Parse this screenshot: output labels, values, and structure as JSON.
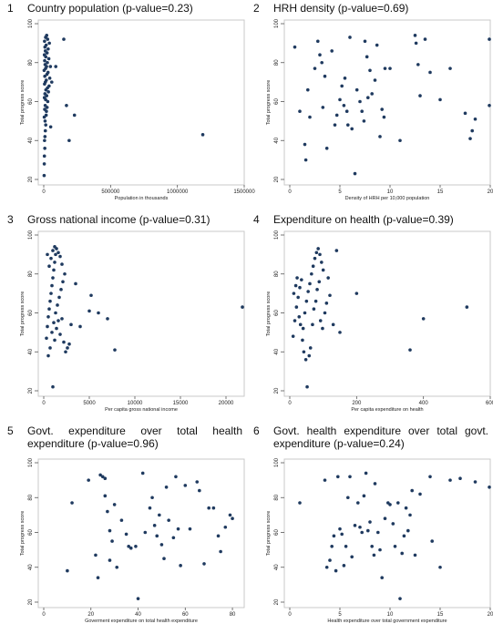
{
  "chart_data": [
    {
      "type": "scatter",
      "number": "1",
      "title": "Country population (p-value=0.23)",
      "xlabel": "Population in thousands",
      "ylabel": "Total progress score",
      "xlim": [
        0,
        1500000
      ],
      "ylim": [
        20,
        100
      ],
      "xticks": [
        0,
        500000,
        1000000,
        1500000
      ],
      "xticklabels": [
        "0",
        "500000",
        "1000000",
        "1500000"
      ],
      "yticks": [
        20,
        40,
        60,
        80,
        100
      ],
      "yticklabels": [
        "20",
        "40",
        "60",
        "80",
        "100"
      ],
      "points": [
        [
          3000,
          22
        ],
        [
          4000,
          28
        ],
        [
          5000,
          32
        ],
        [
          8000,
          36
        ],
        [
          6000,
          40
        ],
        [
          9000,
          42
        ],
        [
          12000,
          45
        ],
        [
          15000,
          48
        ],
        [
          10000,
          50
        ],
        [
          4000,
          52
        ],
        [
          18000,
          53
        ],
        [
          20000,
          55
        ],
        [
          7000,
          56
        ],
        [
          25000,
          57
        ],
        [
          11000,
          58
        ],
        [
          30000,
          60
        ],
        [
          14000,
          61
        ],
        [
          5000,
          62
        ],
        [
          22000,
          63
        ],
        [
          9000,
          64
        ],
        [
          35000,
          65
        ],
        [
          16000,
          66
        ],
        [
          28000,
          67
        ],
        [
          40000,
          68
        ],
        [
          6000,
          69
        ],
        [
          12000,
          70
        ],
        [
          19000,
          71
        ],
        [
          45000,
          72
        ],
        [
          8000,
          73
        ],
        [
          24000,
          74
        ],
        [
          32000,
          75
        ],
        [
          3000,
          76
        ],
        [
          14000,
          77
        ],
        [
          50000,
          78
        ],
        [
          21000,
          78
        ],
        [
          10000,
          79
        ],
        [
          27000,
          80
        ],
        [
          7000,
          81
        ],
        [
          38000,
          82
        ],
        [
          15000,
          83
        ],
        [
          5000,
          84
        ],
        [
          25000,
          85
        ],
        [
          12000,
          86
        ],
        [
          33000,
          87
        ],
        [
          9000,
          88
        ],
        [
          18000,
          89
        ],
        [
          42000,
          90
        ],
        [
          6000,
          91
        ],
        [
          29000,
          92
        ],
        [
          14000,
          93
        ],
        [
          22000,
          94
        ],
        [
          52000,
          47
        ],
        [
          60000,
          70
        ],
        [
          90000,
          78
        ],
        [
          150000,
          92
        ],
        [
          170000,
          58
        ],
        [
          190000,
          40
        ],
        [
          230000,
          53
        ],
        [
          1190000,
          43
        ]
      ]
    },
    {
      "type": "scatter",
      "number": "2",
      "title": "HRH density (p-value=0.69)",
      "xlabel": "Density of HRH per 10,000 population",
      "ylabel": "Total progress score",
      "xlim": [
        0,
        20
      ],
      "ylim": [
        20,
        100
      ],
      "xticks": [
        0,
        5,
        10,
        15,
        20
      ],
      "xticklabels": [
        "0",
        "5",
        "10",
        "15",
        "20"
      ],
      "yticks": [
        20,
        40,
        60,
        80,
        100
      ],
      "yticklabels": [
        "20",
        "40",
        "60",
        "80",
        "100"
      ],
      "points": [
        [
          0.5,
          88
        ],
        [
          1.0,
          55
        ],
        [
          1.5,
          38
        ],
        [
          1.6,
          30
        ],
        [
          1.8,
          66
        ],
        [
          2.0,
          52
        ],
        [
          2.5,
          77
        ],
        [
          2.8,
          91
        ],
        [
          3.0,
          84
        ],
        [
          3.2,
          80
        ],
        [
          3.5,
          73
        ],
        [
          3.7,
          36
        ],
        [
          3.3,
          57
        ],
        [
          4.5,
          48
        ],
        [
          4.7,
          53
        ],
        [
          4.2,
          86
        ],
        [
          5.0,
          61
        ],
        [
          5.2,
          68
        ],
        [
          5.4,
          58
        ],
        [
          5.5,
          72
        ],
        [
          5.7,
          55
        ],
        [
          5.8,
          48
        ],
        [
          6.0,
          93
        ],
        [
          6.2,
          46
        ],
        [
          6.5,
          23
        ],
        [
          6.7,
          66
        ],
        [
          7.0,
          60
        ],
        [
          7.2,
          55
        ],
        [
          7.4,
          50
        ],
        [
          7.5,
          91
        ],
        [
          7.7,
          83
        ],
        [
          7.8,
          62
        ],
        [
          8.0,
          76
        ],
        [
          8.2,
          64
        ],
        [
          8.5,
          71
        ],
        [
          8.7,
          89
        ],
        [
          9.0,
          42
        ],
        [
          9.2,
          56
        ],
        [
          9.4,
          52
        ],
        [
          9.5,
          77
        ],
        [
          10.0,
          77
        ],
        [
          11.0,
          40
        ],
        [
          12.5,
          94
        ],
        [
          12.6,
          90
        ],
        [
          12.8,
          79
        ],
        [
          13.0,
          63
        ],
        [
          13.5,
          92
        ],
        [
          14.0,
          75
        ],
        [
          15.0,
          61
        ],
        [
          16.0,
          77
        ],
        [
          17.5,
          54
        ],
        [
          18.0,
          41
        ],
        [
          18.2,
          45
        ],
        [
          18.5,
          51
        ],
        [
          20.0,
          92
        ],
        [
          20.0,
          58
        ]
      ]
    },
    {
      "type": "scatter",
      "number": "3",
      "title": "Gross national income (p-value=0.31)",
      "xlabel": "Per capita gross national income",
      "ylabel": "Total progress score",
      "xlim": [
        0,
        22000
      ],
      "ylim": [
        20,
        100
      ],
      "xticks": [
        0,
        5000,
        10000,
        15000,
        20000
      ],
      "xticklabels": [
        "0",
        "5000",
        "10000",
        "15000",
        "20000"
      ],
      "yticks": [
        20,
        40,
        60,
        80,
        100
      ],
      "yticklabels": [
        "20",
        "40",
        "60",
        "80",
        "100"
      ],
      "points": [
        [
          300,
          47
        ],
        [
          400,
          53
        ],
        [
          500,
          58
        ],
        [
          600,
          62
        ],
        [
          700,
          66
        ],
        [
          800,
          70
        ],
        [
          900,
          74
        ],
        [
          1000,
          78
        ],
        [
          1100,
          82
        ],
        [
          1200,
          86
        ],
        [
          1300,
          90
        ],
        [
          400,
          90
        ],
        [
          600,
          84
        ],
        [
          800,
          88
        ],
        [
          1000,
          92
        ],
        [
          1200,
          94
        ],
        [
          1400,
          93
        ],
        [
          1600,
          91
        ],
        [
          1800,
          89
        ],
        [
          2000,
          85
        ],
        [
          500,
          38
        ],
        [
          700,
          42
        ],
        [
          900,
          50
        ],
        [
          1100,
          55
        ],
        [
          1300,
          60
        ],
        [
          1500,
          64
        ],
        [
          1700,
          68
        ],
        [
          1900,
          72
        ],
        [
          2100,
          76
        ],
        [
          2300,
          80
        ],
        [
          1000,
          22
        ],
        [
          1200,
          46
        ],
        [
          1400,
          52
        ],
        [
          1600,
          56
        ],
        [
          1800,
          49
        ],
        [
          2000,
          57
        ],
        [
          2200,
          45
        ],
        [
          2400,
          40
        ],
        [
          2600,
          42
        ],
        [
          2800,
          44
        ],
        [
          3000,
          54
        ],
        [
          3500,
          75
        ],
        [
          4000,
          53
        ],
        [
          5000,
          61
        ],
        [
          5200,
          69
        ],
        [
          6000,
          60
        ],
        [
          7000,
          57
        ],
        [
          7800,
          41
        ],
        [
          21800,
          63
        ]
      ]
    },
    {
      "type": "scatter",
      "number": "4",
      "title": "Expenditure on health (p-value=0.39)",
      "xlabel": "Per capita expenditure on health",
      "ylabel": "Total progress score",
      "xlim": [
        0,
        600
      ],
      "ylim": [
        20,
        100
      ],
      "xticks": [
        0,
        200,
        400,
        600
      ],
      "xticklabels": [
        "0",
        "200",
        "400",
        "600"
      ],
      "yticks": [
        20,
        40,
        60,
        80,
        100
      ],
      "yticklabels": [
        "20",
        "40",
        "60",
        "80",
        "100"
      ],
      "points": [
        [
          10,
          48
        ],
        [
          15,
          56
        ],
        [
          20,
          63
        ],
        [
          25,
          68
        ],
        [
          30,
          73
        ],
        [
          35,
          77
        ],
        [
          40,
          52
        ],
        [
          45,
          60
        ],
        [
          50,
          66
        ],
        [
          55,
          71
        ],
        [
          60,
          75
        ],
        [
          65,
          80
        ],
        [
          70,
          84
        ],
        [
          75,
          88
        ],
        [
          80,
          91
        ],
        [
          85,
          93
        ],
        [
          90,
          90
        ],
        [
          95,
          86
        ],
        [
          100,
          82
        ],
        [
          12,
          70
        ],
        [
          18,
          74
        ],
        [
          22,
          78
        ],
        [
          28,
          58
        ],
        [
          32,
          54
        ],
        [
          38,
          46
        ],
        [
          42,
          40
        ],
        [
          48,
          36
        ],
        [
          52,
          22
        ],
        [
          58,
          38
        ],
        [
          62,
          42
        ],
        [
          68,
          54
        ],
        [
          72,
          62
        ],
        [
          78,
          66
        ],
        [
          82,
          72
        ],
        [
          88,
          76
        ],
        [
          92,
          56
        ],
        [
          98,
          52
        ],
        [
          105,
          60
        ],
        [
          110,
          65
        ],
        [
          115,
          78
        ],
        [
          120,
          69
        ],
        [
          130,
          54
        ],
        [
          140,
          92
        ],
        [
          150,
          50
        ],
        [
          200,
          70
        ],
        [
          360,
          41
        ],
        [
          400,
          57
        ],
        [
          530,
          63
        ]
      ]
    },
    {
      "type": "scatter",
      "number": "5",
      "title": "Govt. expenditure over total health expenditure (p-value=0.96)",
      "xlabel": "Goverment expenditure on total health expenditure",
      "ylabel": "Total progress score",
      "xlim": [
        0,
        85
      ],
      "ylim": [
        20,
        100
      ],
      "xticks": [
        0,
        20,
        40,
        60,
        80
      ],
      "xticklabels": [
        "0",
        "20",
        "40",
        "60",
        "80"
      ],
      "yticks": [
        20,
        40,
        60,
        80,
        100
      ],
      "yticklabels": [
        "20",
        "40",
        "60",
        "80",
        "100"
      ],
      "points": [
        [
          10,
          38
        ],
        [
          12,
          77
        ],
        [
          19,
          90
        ],
        [
          22,
          47
        ],
        [
          23,
          34
        ],
        [
          24,
          93
        ],
        [
          25,
          92
        ],
        [
          26,
          91
        ],
        [
          26,
          81
        ],
        [
          27,
          72
        ],
        [
          28,
          61
        ],
        [
          28,
          44
        ],
        [
          29,
          55
        ],
        [
          30,
          76
        ],
        [
          31,
          40
        ],
        [
          33,
          67
        ],
        [
          35,
          59
        ],
        [
          36,
          52
        ],
        [
          37,
          51
        ],
        [
          39,
          52
        ],
        [
          40,
          22
        ],
        [
          42,
          94
        ],
        [
          43,
          60
        ],
        [
          45,
          74
        ],
        [
          46,
          80
        ],
        [
          47,
          64
        ],
        [
          48,
          58
        ],
        [
          49,
          70
        ],
        [
          50,
          53
        ],
        [
          51,
          45
        ],
        [
          52,
          86
        ],
        [
          53,
          67
        ],
        [
          55,
          57
        ],
        [
          56,
          92
        ],
        [
          57,
          62
        ],
        [
          58,
          41
        ],
        [
          60,
          87
        ],
        [
          62,
          62
        ],
        [
          65,
          89
        ],
        [
          66,
          84
        ],
        [
          68,
          42
        ],
        [
          70,
          74
        ],
        [
          72,
          74
        ],
        [
          74,
          58
        ],
        [
          75,
          49
        ],
        [
          77,
          63
        ],
        [
          79,
          70
        ],
        [
          80,
          68
        ]
      ]
    },
    {
      "type": "scatter",
      "number": "6",
      "title": "Govt. health expenditure over total govt. expenditure (p-value=0.24)",
      "xlabel": "Health expenditure over total government expenditure",
      "ylabel": "Total progress score",
      "xlim": [
        0,
        20
      ],
      "ylim": [
        20,
        100
      ],
      "xticks": [
        0,
        5,
        10,
        15,
        20
      ],
      "xticklabels": [
        "0",
        "5",
        "10",
        "15",
        "20"
      ],
      "yticks": [
        20,
        40,
        60,
        80,
        100
      ],
      "yticklabels": [
        "20",
        "40",
        "60",
        "80",
        "100"
      ],
      "points": [
        [
          1.0,
          77
        ],
        [
          3.5,
          90
        ],
        [
          3.7,
          40
        ],
        [
          4.0,
          44
        ],
        [
          4.2,
          52
        ],
        [
          4.4,
          58
        ],
        [
          4.6,
          38
        ],
        [
          4.8,
          92
        ],
        [
          5.0,
          62
        ],
        [
          5.2,
          59
        ],
        [
          5.4,
          41
        ],
        [
          5.6,
          52
        ],
        [
          5.8,
          80
        ],
        [
          6.0,
          92
        ],
        [
          6.2,
          46
        ],
        [
          6.5,
          64
        ],
        [
          6.8,
          77
        ],
        [
          7.0,
          63
        ],
        [
          7.2,
          60
        ],
        [
          7.4,
          81
        ],
        [
          7.6,
          94
        ],
        [
          7.8,
          61
        ],
        [
          8.0,
          66
        ],
        [
          8.2,
          52
        ],
        [
          8.4,
          47
        ],
        [
          8.5,
          88
        ],
        [
          8.8,
          60
        ],
        [
          9.0,
          50
        ],
        [
          9.2,
          34
        ],
        [
          9.5,
          68
        ],
        [
          9.8,
          77
        ],
        [
          10.0,
          76
        ],
        [
          10.3,
          65
        ],
        [
          10.5,
          52
        ],
        [
          10.8,
          77
        ],
        [
          11.0,
          22
        ],
        [
          11.2,
          48
        ],
        [
          11.4,
          58
        ],
        [
          11.6,
          74
        ],
        [
          11.8,
          61
        ],
        [
          12.0,
          70
        ],
        [
          12.2,
          84
        ],
        [
          12.5,
          47
        ],
        [
          13.0,
          82
        ],
        [
          14.0,
          92
        ],
        [
          14.2,
          55
        ],
        [
          15.0,
          40
        ],
        [
          16.0,
          90
        ],
        [
          17.0,
          91
        ],
        [
          18.5,
          89
        ],
        [
          20.0,
          86
        ]
      ]
    }
  ]
}
